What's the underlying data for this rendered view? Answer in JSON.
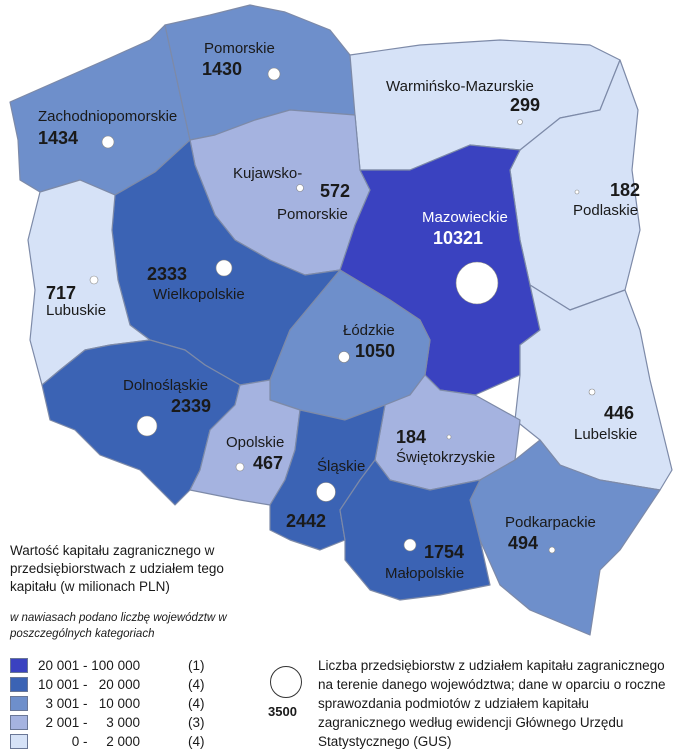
{
  "colors": {
    "class1": "#3a42c0",
    "class2": "#3b63b4",
    "class3": "#6e8fcb",
    "class4": "#a5b3e0",
    "class5": "#d6e2f7",
    "border": "#7d8aa8"
  },
  "regions": [
    {
      "id": "pomorskie",
      "name": "Pomorskie",
      "value": "1430",
      "class": "class3"
    },
    {
      "id": "warminsko-mazurskie",
      "name": "Warmińsko-Mazurskie",
      "value": "299",
      "class": "class5"
    },
    {
      "id": "zachodniopomorskie",
      "name": "Zachodniopomorskie",
      "value": "1434",
      "class": "class3"
    },
    {
      "id": "kujawsko-pomorskie",
      "name_line1": "Kujawsko-",
      "name_line2": "Pomorskie",
      "value": "572",
      "class": "class4"
    },
    {
      "id": "podlaskie",
      "name": "Podlaskie",
      "value": "182",
      "class": "class5"
    },
    {
      "id": "mazowieckie",
      "name": "Mazowieckie",
      "value": "10321",
      "class": "class1"
    },
    {
      "id": "wielkopolskie",
      "name": "Wielkopolskie",
      "value": "2333",
      "class": "class2"
    },
    {
      "id": "lubuskie",
      "name": "Lubuskie",
      "value": "717",
      "class": "class5"
    },
    {
      "id": "lodzkie",
      "name": "Łódzkie",
      "value": "1050",
      "class": "class3"
    },
    {
      "id": "dolnoslaskie",
      "name": "Dolnośląskie",
      "value": "2339",
      "class": "class2"
    },
    {
      "id": "lubelskie",
      "name": "Lubelskie",
      "value": "446",
      "class": "class5"
    },
    {
      "id": "opolskie",
      "name": "Opolskie",
      "value": "467",
      "class": "class4"
    },
    {
      "id": "swietokrzyskie",
      "name": "Świętokrzyskie",
      "value": "184",
      "class": "class4"
    },
    {
      "id": "slaskie",
      "name": "Śląskie",
      "value": "2442",
      "class": "class2"
    },
    {
      "id": "podkarpackie",
      "name": "Podkarpackie",
      "value": "494",
      "class": "class3"
    },
    {
      "id": "malopolskie",
      "name": "Małopolskie",
      "value": "1754",
      "class": "class2"
    }
  ],
  "legend": {
    "title": "Wartość kapitału zagranicznego w przedsiębiorstwach z udziałem tego kapitału (w milionach PLN)",
    "note": "w nawiasach podano liczbę województw w poszczególnych kategoriach",
    "classes": [
      {
        "range": "20 001 - 100 000",
        "count": "(1)",
        "color": "#3a42c0"
      },
      {
        "range": "10 001 -   20 000",
        "count": "(4)",
        "color": "#3b63b4"
      },
      {
        "range": "  3 001 -   10 000",
        "count": "(4)",
        "color": "#6e8fcb"
      },
      {
        "range": "  2 001 -     3 000",
        "count": "(3)",
        "color": "#a5b3e0"
      },
      {
        "range": "         0 -     2 000",
        "count": "(4)",
        "color": "#d6e2f7"
      }
    ],
    "bubble_value": "3500",
    "bubble_text": "Liczba przedsiębiorstw z udziałem kapitału zagranicznego na terenie danego województwa; dane w oparciu o roczne sprawozdania podmiotów z udziałem kapitału zagranicznego według ewidencji Głównego Urzędu Statystycznego (GUS)"
  }
}
